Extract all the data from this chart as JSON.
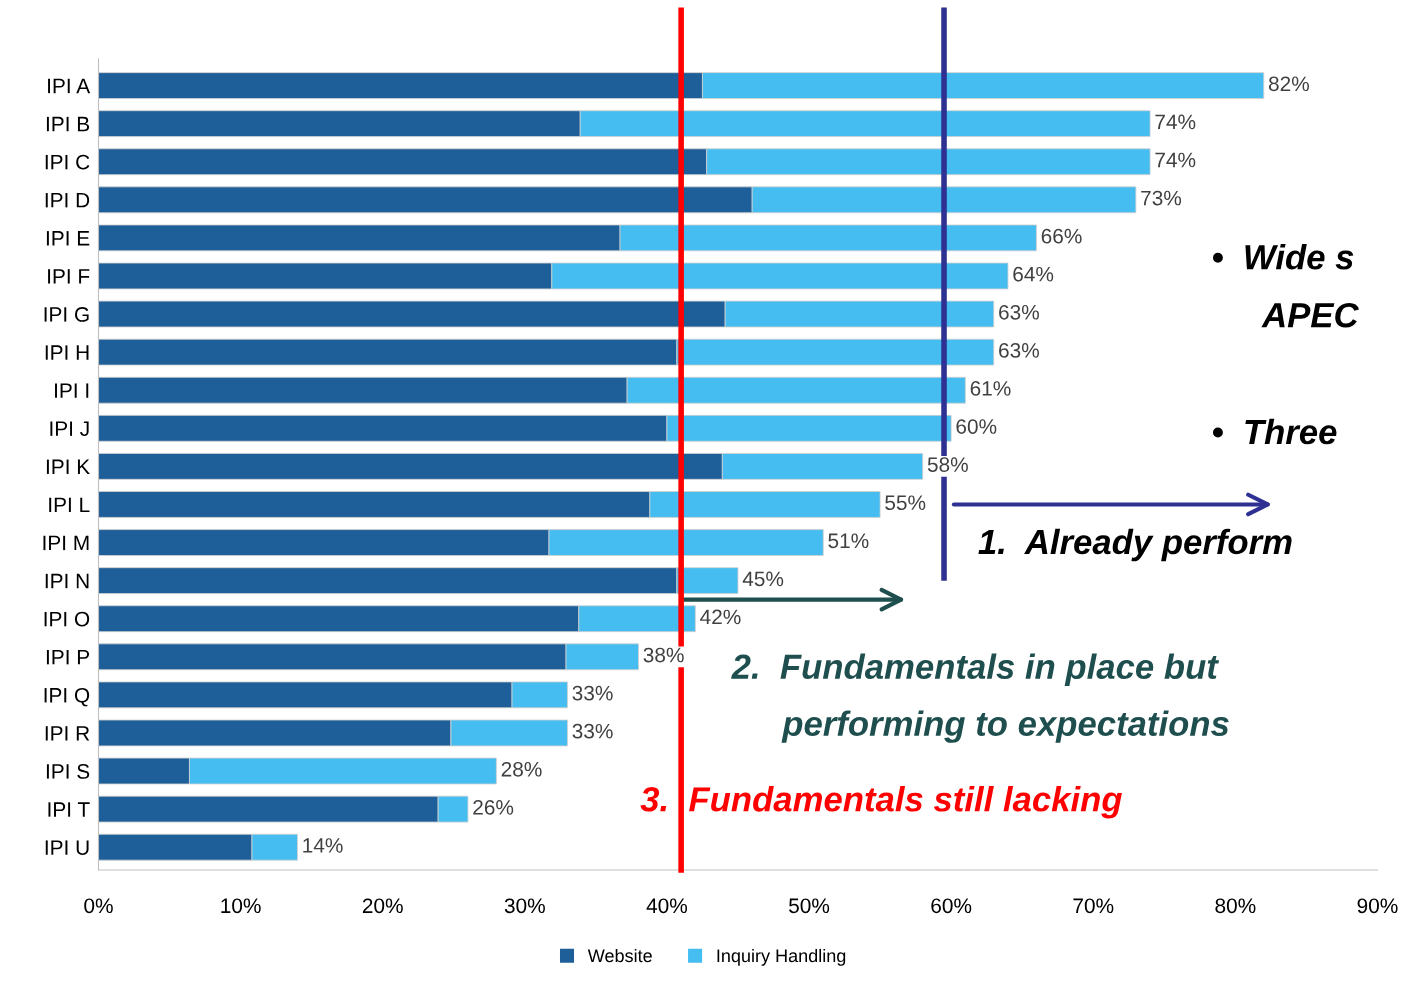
{
  "chart_data": {
    "type": "bar",
    "orientation": "horizontal",
    "stacked": true,
    "categories": [
      "IPI A",
      "IPI B",
      "IPI C",
      "IPI D",
      "IPI E",
      "IPI F",
      "IPI G",
      "IPI H",
      "IPI I",
      "IPI J",
      "IPI K",
      "IPI L",
      "IPI M",
      "IPI N",
      "IPI O",
      "IPI P",
      "IPI Q",
      "IPI R",
      "IPI S",
      "IPI T",
      "IPI U"
    ],
    "series": [
      {
        "name": "Website",
        "color": "#1f5f99",
        "values": [
          42.5,
          33.9,
          42.8,
          46.0,
          36.7,
          31.9,
          44.1,
          40.7,
          37.2,
          40.0,
          43.9,
          38.8,
          31.7,
          40.7,
          33.8,
          32.9,
          29.1,
          24.8,
          6.4,
          23.9,
          10.8
        ]
      },
      {
        "name": "Inquiry Handling",
        "color": "#45bdf0",
        "values": [
          39.5,
          40.1,
          31.2,
          27.0,
          29.3,
          32.1,
          18.9,
          22.3,
          23.8,
          20.0,
          14.1,
          16.2,
          19.3,
          4.3,
          8.2,
          5.1,
          3.9,
          8.2,
          21.6,
          2.1,
          3.2
        ]
      }
    ],
    "totals": [
      "82%",
      "74%",
      "74%",
      "73%",
      "66%",
      "64%",
      "63%",
      "63%",
      "61%",
      "60%",
      "58%",
      "55%",
      "51%",
      "45%",
      "42%",
      "38%",
      "33%",
      "33%",
      "28%",
      "26%",
      "14%"
    ],
    "xlim": [
      0,
      90
    ],
    "xticks": [
      {
        "value": 0,
        "label": "0%"
      },
      {
        "value": 10,
        "label": "10%"
      },
      {
        "value": 20,
        "label": "20%"
      },
      {
        "value": 30,
        "label": "30%"
      },
      {
        "value": 40,
        "label": "40%"
      },
      {
        "value": 50,
        "label": "50%"
      },
      {
        "value": 60,
        "label": "60%"
      },
      {
        "value": 70,
        "label": "70%"
      },
      {
        "value": 80,
        "label": "80%"
      },
      {
        "value": 90,
        "label": "90%"
      }
    ],
    "ref_lines": [
      {
        "axis": "x",
        "value": 41,
        "color": "#ff0000"
      },
      {
        "axis": "x",
        "value": 59.5,
        "color": "#2e3192"
      }
    ],
    "annotations": [
      "•  Wide s",
      "APEC",
      "•  Three",
      "1.  Already perform",
      "2.  Fundamentals in place but",
      "performing to expectations",
      "3.  Fundamentals still lacking"
    ],
    "legend": "bottom",
    "grid": false
  }
}
